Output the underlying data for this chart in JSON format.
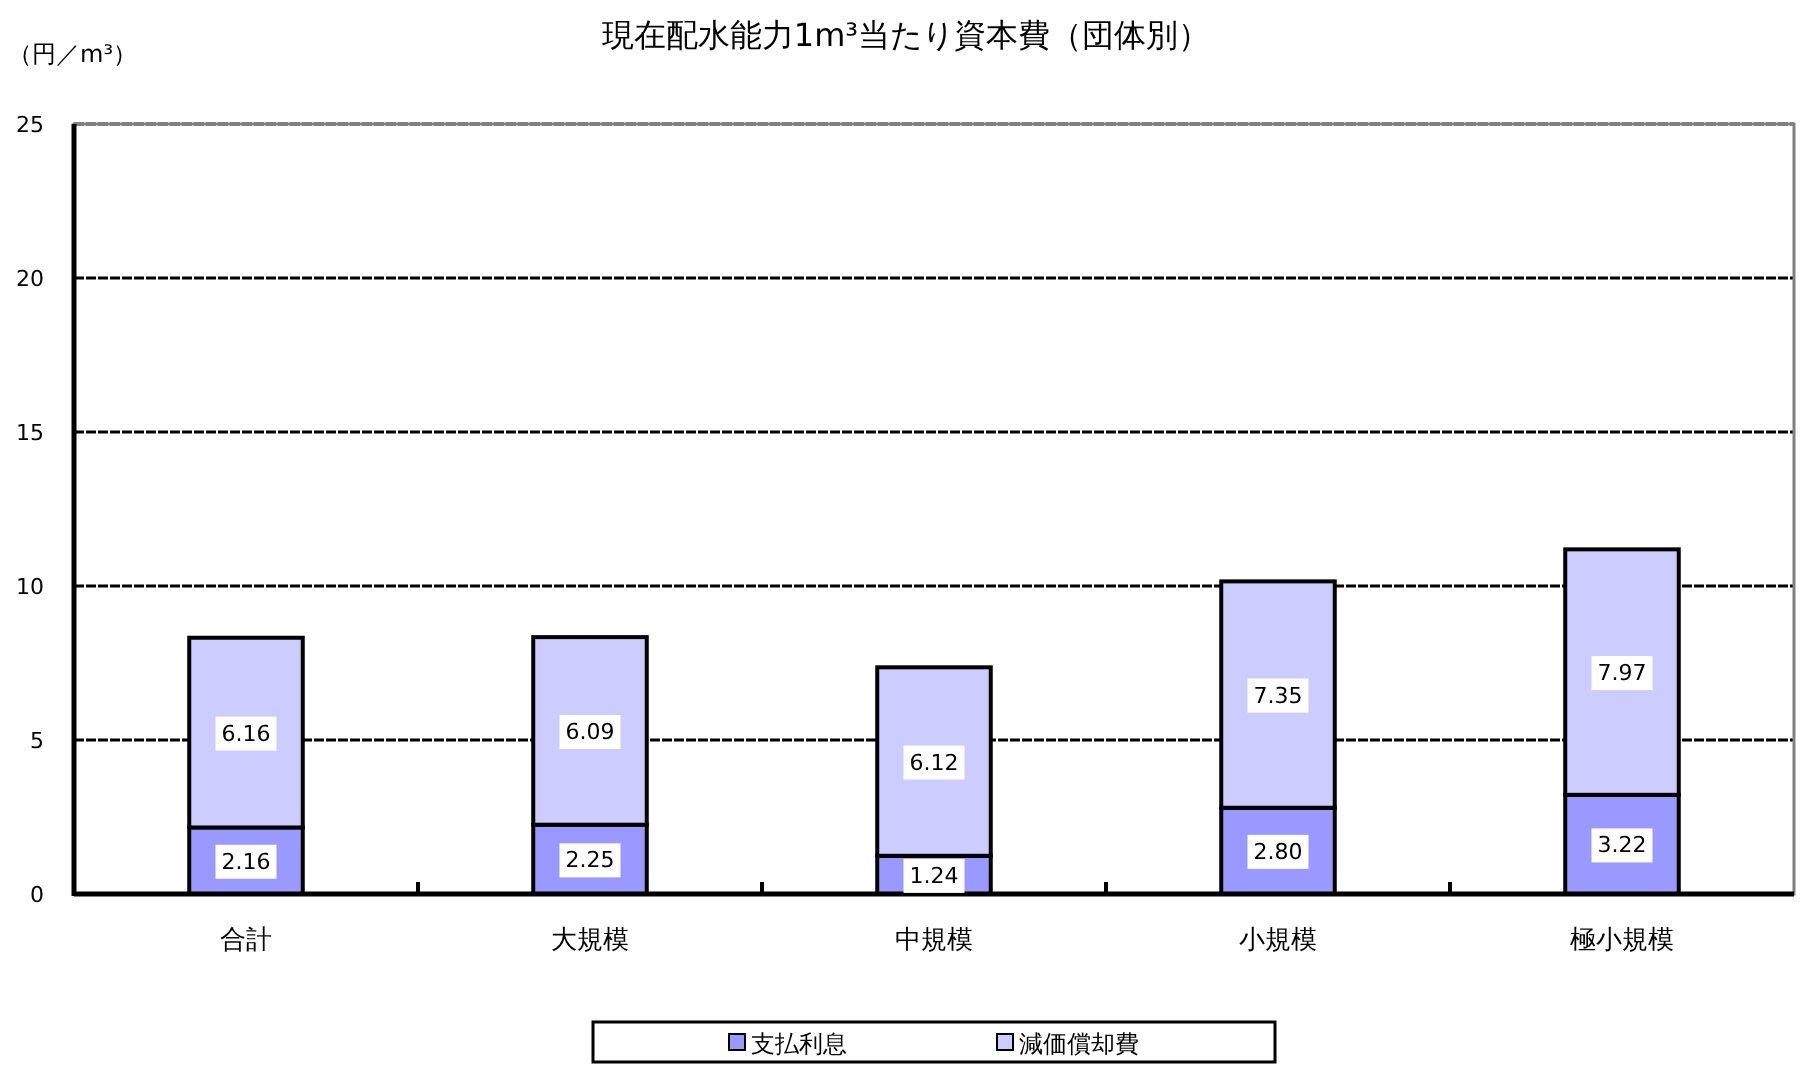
{
  "chart_data": {
    "type": "bar",
    "title": "現在配水能力1m³当たり資本費（団体別）",
    "ylabel": "（円／m³）",
    "categories": [
      "合計",
      "大規模",
      "中規模",
      "小規模",
      "極小規模"
    ],
    "stacked": true,
    "series": [
      {
        "name": "支払利息",
        "color": "#9999ff",
        "values": [
          2.16,
          2.25,
          1.24,
          2.8,
          3.22
        ],
        "value_labels": [
          "2.16",
          "2.25",
          "1.24",
          "2.80",
          "3.22"
        ]
      },
      {
        "name": "減価償却費",
        "color": "#ccccff",
        "values": [
          6.16,
          6.09,
          6.12,
          7.35,
          7.97
        ],
        "value_labels": [
          "6.16",
          "6.09",
          "6.12",
          "7.35",
          "7.97"
        ]
      }
    ],
    "ylim": [
      0,
      25
    ],
    "yticks": [
      0,
      5,
      10,
      15,
      20,
      25
    ],
    "grid": "y",
    "legend": "bottom"
  }
}
